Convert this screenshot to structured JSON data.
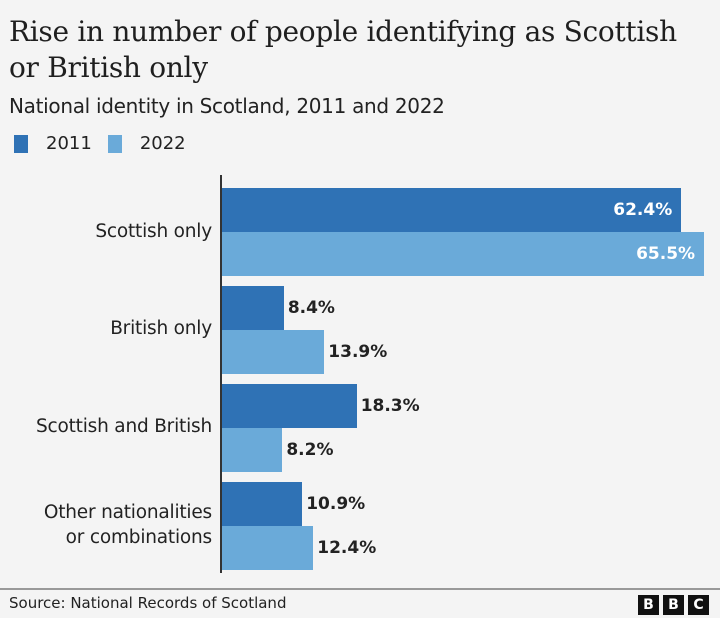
{
  "header": {
    "title": "Rise in number of people identifying as Scottish or British only",
    "subtitle": "National identity in Scotland, 2011 and 2022"
  },
  "legend": [
    {
      "label": "2011",
      "color": "#2f72b5"
    },
    {
      "label": "2022",
      "color": "#6aaad9"
    }
  ],
  "footer": {
    "source": "Source: National Records of Scotland",
    "logo": [
      "B",
      "B",
      "C"
    ]
  },
  "chart_data": {
    "type": "bar",
    "orientation": "horizontal",
    "title": "Rise in number of people identifying as Scottish or British only",
    "subtitle": "National identity in Scotland, 2011 and 2022",
    "categories": [
      "Scottish only",
      "British only",
      "Scottish and British",
      "Other nationalities or combinations"
    ],
    "series": [
      {
        "name": "2011",
        "color": "#2f72b5",
        "values": [
          62.4,
          8.4,
          18.3,
          10.9
        ],
        "labels": [
          "62.4%",
          "8.4%",
          "18.3%",
          "10.9%"
        ]
      },
      {
        "name": "2022",
        "color": "#6aaad9",
        "values": [
          65.5,
          13.9,
          8.2,
          12.4
        ],
        "labels": [
          "65.5%",
          "13.9%",
          "8.2%",
          "12.4%"
        ]
      }
    ],
    "xlabel": "",
    "ylabel": "",
    "unit": "%",
    "grid": false,
    "legend_position": "top-left",
    "source": "Source: National Records of Scotland"
  }
}
